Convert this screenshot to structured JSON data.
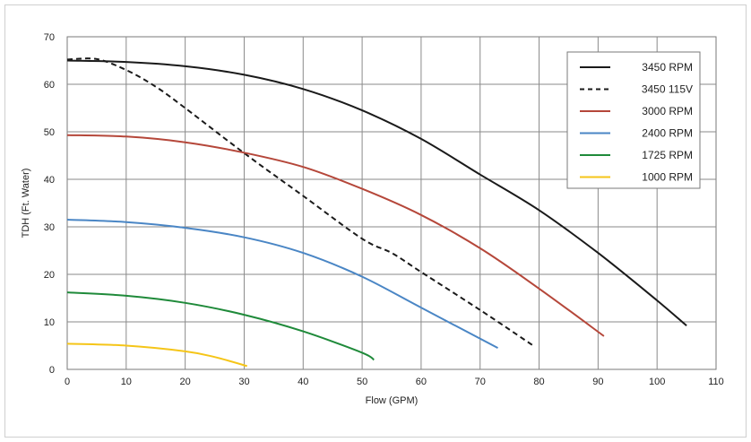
{
  "chart_data": {
    "type": "line",
    "title": "",
    "xlabel": "Flow (GPM)",
    "ylabel": "TDH (Ft. Water)",
    "xlim": [
      0,
      110
    ],
    "ylim": [
      0,
      70
    ],
    "x_ticks": [
      "0",
      "10",
      "20",
      "30",
      "40",
      "50",
      "60",
      "70",
      "80",
      "90",
      "100",
      "110"
    ],
    "y_ticks": [
      "0",
      "10",
      "20",
      "30",
      "40",
      "50",
      "60",
      "70"
    ],
    "grid": true,
    "legend_position": "top-right",
    "series": [
      {
        "name": "3450 RPM",
        "color": "#1a1a1a",
        "dash": "solid",
        "points": [
          [
            0,
            65
          ],
          [
            10,
            64.7
          ],
          [
            20,
            63.8
          ],
          [
            30,
            62.0
          ],
          [
            40,
            59.0
          ],
          [
            50,
            54.5
          ],
          [
            60,
            48.5
          ],
          [
            70,
            41.0
          ],
          [
            80,
            33.5
          ],
          [
            90,
            24.5
          ],
          [
            100,
            14.5
          ],
          [
            105,
            9.2
          ]
        ]
      },
      {
        "name": "3450 115V",
        "color": "#1a1a1a",
        "dash": "dashed",
        "points": [
          [
            0,
            65.2
          ],
          [
            5,
            65.3
          ],
          [
            10,
            63.0
          ],
          [
            15,
            59.5
          ],
          [
            20,
            55.0
          ],
          [
            30,
            45.5
          ],
          [
            40,
            36.5
          ],
          [
            50,
            27.5
          ],
          [
            55,
            24.5
          ],
          [
            60,
            20.5
          ],
          [
            70,
            12.5
          ],
          [
            79,
            5
          ]
        ]
      },
      {
        "name": "3000 RPM",
        "color": "#b5473a",
        "dash": "solid",
        "points": [
          [
            0,
            49.3
          ],
          [
            10,
            49.0
          ],
          [
            20,
            47.8
          ],
          [
            30,
            45.6
          ],
          [
            40,
            42.6
          ],
          [
            50,
            38.0
          ],
          [
            60,
            32.5
          ],
          [
            70,
            25.5
          ],
          [
            80,
            17.0
          ],
          [
            91,
            7
          ]
        ]
      },
      {
        "name": "2400 RPM",
        "color": "#4a86c5",
        "dash": "solid",
        "points": [
          [
            0,
            31.5
          ],
          [
            10,
            31.0
          ],
          [
            20,
            29.8
          ],
          [
            30,
            27.8
          ],
          [
            40,
            24.5
          ],
          [
            50,
            19.5
          ],
          [
            60,
            13.0
          ],
          [
            73,
            4.5
          ]
        ]
      },
      {
        "name": "1725 RPM",
        "color": "#1f8a3a",
        "dash": "solid",
        "points": [
          [
            0,
            16.2
          ],
          [
            10,
            15.5
          ],
          [
            20,
            14.0
          ],
          [
            30,
            11.5
          ],
          [
            40,
            8.0
          ],
          [
            50,
            3.5
          ],
          [
            52,
            2
          ]
        ]
      },
      {
        "name": "1000 RPM",
        "color": "#f5c518",
        "dash": "solid",
        "points": [
          [
            0,
            5.4
          ],
          [
            10,
            5.0
          ],
          [
            20,
            3.8
          ],
          [
            25,
            2.6
          ],
          [
            30.5,
            0.7
          ]
        ]
      }
    ]
  }
}
